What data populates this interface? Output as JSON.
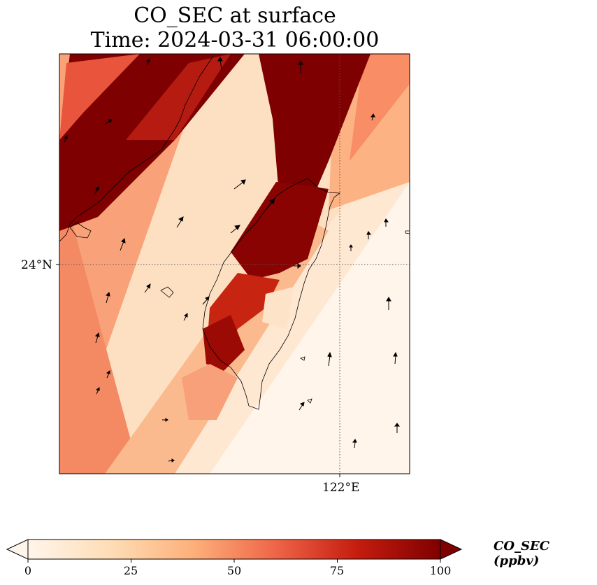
{
  "title": {
    "line1": "CO_SEC at surface",
    "line2": "Time: 2024-03-31 06:00:00"
  },
  "axes": {
    "lat_tick_label": "24°N",
    "lon_tick_label": "122°E",
    "lat_tick_value": 24,
    "lon_tick_value": 122
  },
  "colorbar": {
    "label": "CO_SEC (ppbv)",
    "min": 0,
    "max": 100,
    "ticks": [
      "0",
      "25",
      "50",
      "75",
      "100"
    ],
    "extend": "both",
    "colors": [
      "#fff5eb",
      "#fdd3a5",
      "#fc9e6c",
      "#e34a33",
      "#b30000",
      "#7f0000"
    ]
  },
  "chart_data": {
    "type": "heatmap",
    "variable": "CO_SEC",
    "level": "surface",
    "units": "ppbv",
    "time": "2024-03-31 06:00:00",
    "plume_bands": [
      {
        "description": "northwest high-concentration band over Taiwan Strait",
        "value_ppbv": 100
      },
      {
        "description": "northeast high-concentration band north of Taiwan",
        "value_ppbv": 100
      },
      {
        "description": "central Taiwan plume",
        "value_ppbv": 95
      },
      {
        "description": "southwest coastal plume",
        "value_ppbv": 85
      },
      {
        "description": "southeast ocean background",
        "value_ppbv": 3
      }
    ],
    "wind_vectors": "shown",
    "gridlines": "dotted at 24°N and 122°E"
  }
}
